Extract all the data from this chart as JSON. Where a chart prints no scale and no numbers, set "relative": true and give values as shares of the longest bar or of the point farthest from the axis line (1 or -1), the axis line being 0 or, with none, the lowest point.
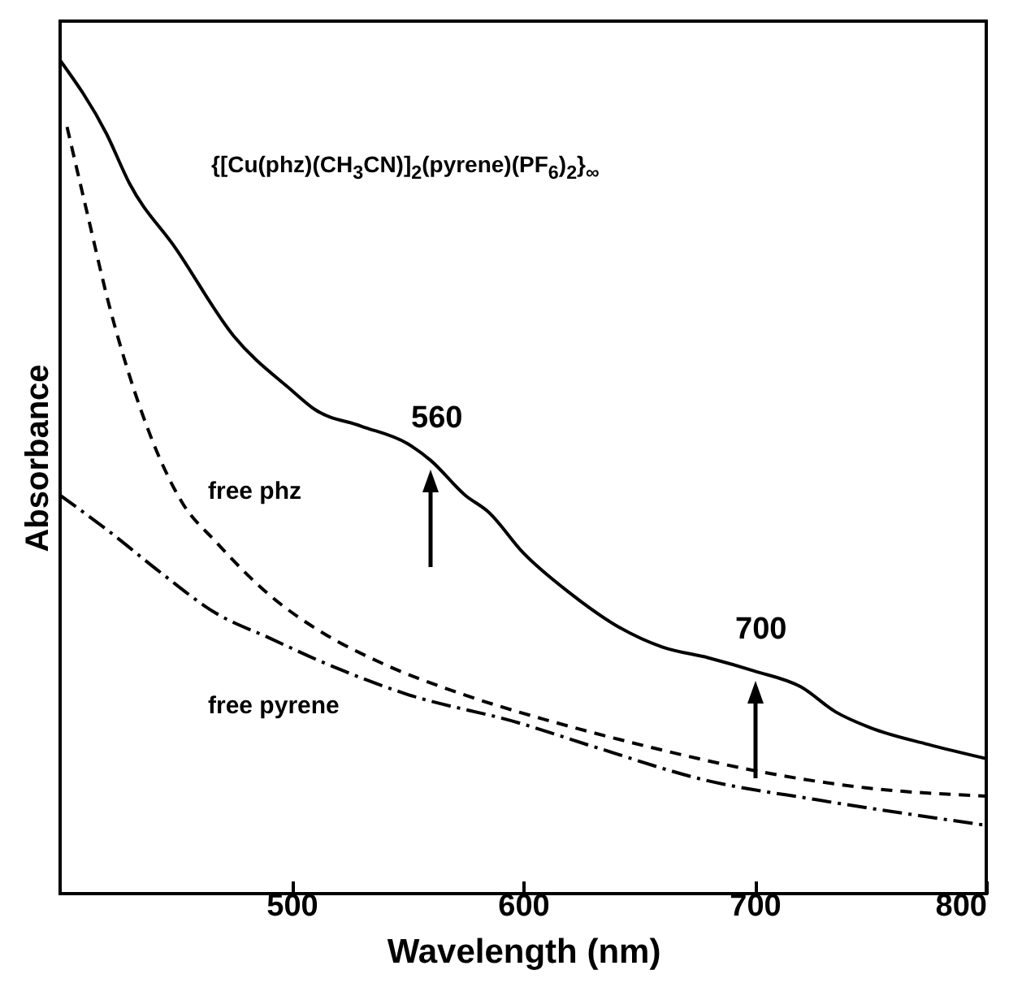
{
  "chart_data": {
    "type": "line",
    "relative": true,
    "xlabel": "Wavelength  (nm)",
    "ylabel": "Absorbance",
    "xlim": [
      400,
      800
    ],
    "xticks": [
      500,
      600,
      700,
      800
    ],
    "grid": false,
    "marker": "none",
    "series": [
      {
        "name": "{[Cu(phz)(CH$_{3}$CN)]$_{2}$(pyrene)(PF$_{6}$)$_{2}$}$_{∞}$",
        "color": "#000000",
        "line_style": "solid",
        "x": [
          400,
          420,
          430,
          450,
          475,
          500,
          510,
          530,
          550,
          560,
          575,
          585,
          600,
          620,
          640,
          660,
          680,
          700,
          720,
          735,
          750,
          775,
          800
        ],
        "values": [
          1.0,
          0.912,
          0.852,
          0.774,
          0.669,
          0.604,
          0.581,
          0.561,
          0.54,
          0.52,
          0.478,
          0.458,
          0.409,
          0.361,
          0.322,
          0.296,
          0.283,
          0.267,
          0.248,
          0.218,
          0.199,
          0.179,
          0.162
        ]
      },
      {
        "name": "free phz",
        "color": "#000000",
        "line_style": "dashed",
        "x": [
          403,
          412,
          421,
          432,
          453,
          467,
          491,
          514,
          537,
          573,
          598,
          608,
          656,
          703,
          748,
          800
        ],
        "values": [
          0.92,
          0.813,
          0.708,
          0.604,
          0.468,
          0.423,
          0.357,
          0.312,
          0.279,
          0.24,
          0.218,
          0.21,
          0.175,
          0.146,
          0.127,
          0.117
        ]
      },
      {
        "name": "free pyrene",
        "color": "#000000",
        "line_style": "dashdot",
        "x": [
          400,
          421,
          444,
          467,
          491,
          514,
          549,
          598,
          632,
          679,
          726,
          800
        ],
        "values": [
          0.478,
          0.435,
          0.384,
          0.337,
          0.306,
          0.277,
          0.24,
          0.205,
          0.175,
          0.136,
          0.113,
          0.082
        ]
      }
    ],
    "annotations": [
      {
        "text": "560",
        "x": 560,
        "y": 0.52
      },
      {
        "text": "700",
        "x": 700,
        "y": 0.267
      }
    ]
  }
}
